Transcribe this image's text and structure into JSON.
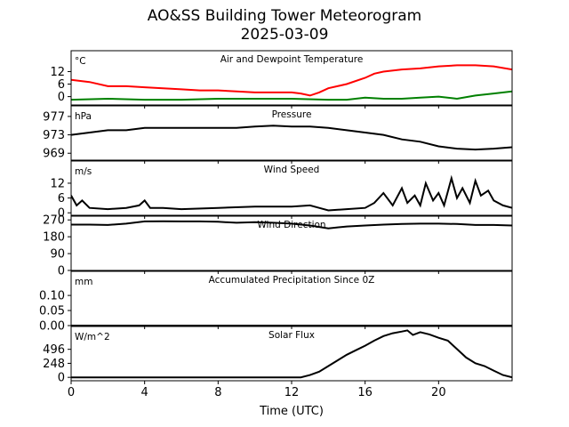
{
  "figure": {
    "title_line1": "AO&SS Building Tower Meteorogram",
    "title_line2": "2025-03-09",
    "xlabel": "Time (UTC)"
  },
  "chart_data": {
    "type": "line",
    "xlim": [
      0,
      24
    ],
    "xticks": [
      0,
      4,
      8,
      12,
      16,
      20
    ],
    "panels": [
      {
        "name": "temperature",
        "title": "Air and Dewpoint Temperature",
        "unit": "°C",
        "ylim": [
          -4,
          22
        ],
        "yticks": [
          0,
          6,
          12
        ],
        "series": [
          {
            "name": "",
            "color": "#ff0000",
            "x": [
              0,
              1,
              2,
              3,
              4,
              5,
              6,
              7,
              8,
              9,
              10,
              11,
              12,
              12.5,
              13,
              13.5,
              14,
              15,
              16,
              16.5,
              17,
              18,
              19,
              20,
              21,
              22,
              23,
              24
            ],
            "y": [
              8,
              7,
              5,
              5,
              4.5,
              4,
              3.5,
              3,
              3,
              2.5,
              2,
              2,
              2,
              1.5,
              0.5,
              2,
              4,
              6,
              9,
              11,
              12,
              13,
              13.5,
              14.5,
              15,
              15,
              14.5,
              13
            ]
          },
          {
            "name": "",
            "color": "#008000",
            "x": [
              0,
              2,
              4,
              6,
              8,
              10,
              12,
              14,
              15,
              16,
              17,
              18,
              19,
              20,
              21,
              22,
              23,
              24
            ],
            "y": [
              -1.5,
              -1,
              -1.5,
              -1.5,
              -1,
              -1,
              -1,
              -1.5,
              -1.5,
              -0.5,
              -1,
              -1,
              -0.5,
              0,
              -1,
              0.5,
              1.5,
              2.5
            ]
          }
        ]
      },
      {
        "name": "pressure",
        "title": "Pressure",
        "unit": "hPa",
        "ylim": [
          967.5,
          979.3
        ],
        "yticks": [
          969,
          973,
          977
        ],
        "series": [
          {
            "name": "",
            "color": "#000000",
            "x": [
              0,
              1,
              2,
              3,
              4,
              5,
              6,
              7,
              8,
              9,
              10,
              11,
              12,
              13,
              14,
              15,
              16,
              17,
              18,
              19,
              20,
              21,
              22,
              23,
              24
            ],
            "y": [
              973,
              973.5,
              974,
              974,
              974.5,
              974.5,
              974.5,
              974.5,
              974.5,
              974.5,
              974.8,
              975,
              974.8,
              974.8,
              974.5,
              974,
              973.5,
              973,
              972,
              971.5,
              970.5,
              970,
              969.8,
              970,
              970.3
            ]
          }
        ]
      },
      {
        "name": "wind_speed",
        "title": "Wind Speed",
        "unit": "m/s",
        "ylim": [
          -1,
          21
        ],
        "yticks": [
          0,
          6,
          12
        ],
        "series": [
          {
            "name": "",
            "color": "#000000",
            "x": [
              0,
              0.3,
              0.6,
              1,
              2,
              3,
              3.7,
              4,
              4.3,
              5,
              6,
              8,
              10,
              12,
              13,
              13.5,
              14,
              15,
              16,
              16.5,
              17,
              17.5,
              18,
              18.3,
              18.7,
              19,
              19.3,
              19.7,
              20,
              20.3,
              20.7,
              21,
              21.3,
              21.7,
              22,
              22.3,
              22.7,
              23,
              23.5,
              24
            ],
            "y": [
              7,
              3,
              5,
              2,
              1.5,
              2,
              3,
              5,
              2,
              2,
              1.5,
              2,
              2.5,
              2.5,
              3,
              2,
              1,
              1.5,
              2,
              4,
              8,
              3,
              10,
              4,
              7,
              3,
              12,
              5,
              8,
              3,
              14,
              6,
              10,
              4,
              13,
              7,
              9,
              5,
              3,
              2
            ]
          }
        ]
      },
      {
        "name": "wind_direction",
        "title": "Wind Direction",
        "unit": "",
        "ylim": [
          0,
          290
        ],
        "yticks": [
          0,
          90,
          180,
          270
        ],
        "series": [
          {
            "name": "",
            "color": "#000000",
            "x": [
              0,
              1,
              2,
              3,
              4,
              5,
              6,
              7,
              8,
              9,
              10,
              11,
              12,
              13,
              14,
              15,
              16,
              17,
              18,
              19,
              20,
              21,
              22,
              23,
              24
            ],
            "y": [
              245,
              245,
              243,
              250,
              262,
              263,
              262,
              262,
              260,
              255,
              258,
              255,
              250,
              240,
              225,
              235,
              240,
              245,
              248,
              250,
              250,
              248,
              243,
              243,
              240
            ]
          }
        ]
      },
      {
        "name": "precipitation",
        "title": "Accumulated Precipitation Since 0Z",
        "unit": "mm",
        "ylim": [
          0,
          0.18
        ],
        "yticks": [
          0.0,
          0.05,
          0.1
        ],
        "ytick_labels": [
          "0.00",
          "0.05",
          "0.10"
        ],
        "series": [
          {
            "name": "",
            "color": "#000000",
            "x": [
              0,
              24
            ],
            "y": [
              0,
              0
            ]
          }
        ]
      },
      {
        "name": "solar_flux",
        "title": "Solar Flux",
        "unit": "W/m^2",
        "ylim": [
          -60,
          900
        ],
        "yticks": [
          0,
          248,
          496
        ],
        "series": [
          {
            "name": "",
            "color": "#000000",
            "x": [
              0,
              12.5,
              13,
              13.5,
              14,
              14.5,
              15,
              15.5,
              16,
              16.5,
              17,
              17.5,
              18,
              18.3,
              18.6,
              19,
              19.5,
              20,
              20.5,
              21,
              21.5,
              22,
              22.5,
              23,
              23.5,
              24
            ],
            "y": [
              0,
              0,
              40,
              100,
              200,
              300,
              400,
              480,
              560,
              650,
              730,
              780,
              810,
              830,
              750,
              800,
              760,
              700,
              650,
              500,
              350,
              250,
              200,
              120,
              40,
              0
            ]
          }
        ]
      }
    ]
  }
}
